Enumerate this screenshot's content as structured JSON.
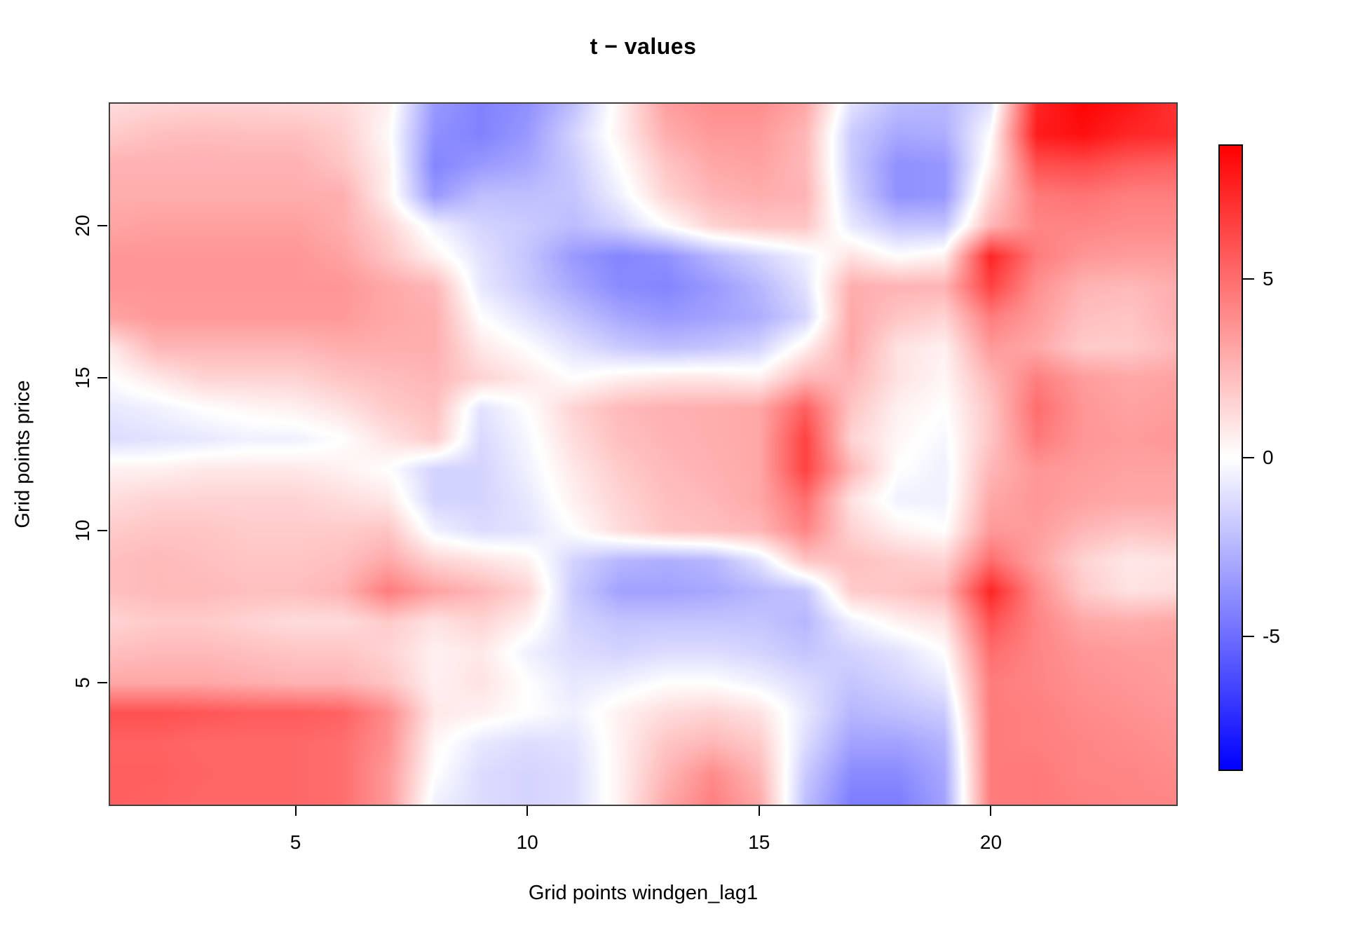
{
  "title": "t − values",
  "x_axis": {
    "label": "Grid points windgen_lag1",
    "tick_labels": [
      "5",
      "10",
      "15",
      "20"
    ],
    "tick_values": [
      5,
      10,
      15,
      20
    ]
  },
  "y_axis": {
    "label": "Grid points price",
    "tick_labels": [
      "5",
      "10",
      "15",
      "20"
    ],
    "tick_values": [
      5,
      10,
      15,
      20
    ]
  },
  "colorbar": {
    "tick_labels": [
      "5",
      "0",
      "-5"
    ],
    "tick_values": [
      5,
      0,
      -5
    ],
    "top_value": 8.75,
    "bottom_value": -8.75,
    "color_positive": "#ff0000",
    "color_zero": "#ffffff",
    "color_negative": "#0000ff"
  },
  "chart_data": {
    "type": "heatmap",
    "title": "t − values",
    "xlabel": "Grid points windgen_lag1",
    "ylabel": "Grid points price",
    "x_range": [
      1,
      24
    ],
    "y_range": [
      1,
      24
    ],
    "x": [
      1,
      2,
      3,
      4,
      5,
      6,
      7,
      8,
      9,
      10,
      11,
      12,
      13,
      14,
      15,
      16,
      17,
      18,
      19,
      20,
      21,
      22,
      23,
      24
    ],
    "y": [
      1,
      2,
      3,
      4,
      5,
      6,
      7,
      8,
      9,
      10,
      11,
      12,
      13,
      14,
      15,
      16,
      17,
      18,
      19,
      20,
      21,
      22,
      23,
      24
    ],
    "zlim": [
      -8.75,
      8.75
    ],
    "palette": "blue-white-red diverging, white at 0",
    "legend": "vertical colorbar at right, ticks 5 / 0 / -5",
    "grid": false,
    "z_rows_order": "top row first (y=24) down to bottom row (y=1)",
    "z": [
      [
        1.2,
        1.4,
        1.5,
        1.5,
        1.4,
        1.3,
        0.5,
        -3.5,
        -4.3,
        -3.8,
        -2.2,
        0.5,
        3.3,
        3.9,
        3.9,
        3.0,
        -1.0,
        -2.3,
        -2.5,
        -1.0,
        7.5,
        8.6,
        8.0,
        7.0
      ],
      [
        1.8,
        2.2,
        2.3,
        2.2,
        2.2,
        1.7,
        0.2,
        -3.8,
        -4.3,
        -3.5,
        -1.5,
        0.5,
        2.8,
        3.5,
        3.5,
        2.5,
        -1.8,
        -3.0,
        -2.8,
        0.0,
        7.8,
        8.2,
        7.4,
        7.2
      ],
      [
        2.7,
        2.7,
        2.7,
        2.7,
        2.7,
        2.0,
        0.5,
        -4.2,
        -3.5,
        -3.0,
        -1.8,
        0.0,
        2.0,
        3.0,
        3.2,
        2.4,
        -1.8,
        -3.8,
        -3.6,
        0.5,
        6.0,
        6.2,
        5.6,
        5.4
      ],
      [
        2.8,
        2.8,
        2.8,
        2.8,
        2.8,
        2.8,
        0.5,
        -3.5,
        -2.2,
        -2.2,
        -2.0,
        -0.5,
        1.5,
        2.5,
        2.8,
        2.6,
        -1.5,
        -3.8,
        -3.6,
        1.5,
        4.6,
        4.8,
        4.4,
        4.4
      ],
      [
        3.1,
        3.3,
        3.3,
        3.3,
        3.3,
        2.8,
        1.5,
        -0.5,
        -1.5,
        -1.8,
        -2.3,
        -1.5,
        0.0,
        1.5,
        2.0,
        2.0,
        -0.8,
        -2.0,
        -2.0,
        2.5,
        4.2,
        4.2,
        4.0,
        4.0
      ],
      [
        3.6,
        3.6,
        3.6,
        3.6,
        3.6,
        3.2,
        2.0,
        0.5,
        -1.0,
        -2.0,
        -3.5,
        -4.2,
        -3.8,
        -2.5,
        -1.5,
        -0.5,
        1.0,
        0.0,
        0.5,
        7.5,
        4.5,
        3.6,
        3.4,
        3.4
      ],
      [
        3.6,
        3.6,
        3.6,
        3.6,
        3.6,
        3.6,
        3.0,
        2.5,
        -0.8,
        -1.8,
        -3.0,
        -4.0,
        -4.2,
        -3.5,
        -2.5,
        -1.0,
        2.8,
        2.6,
        2.6,
        6.5,
        3.8,
        2.6,
        2.4,
        2.8
      ],
      [
        3.2,
        3.5,
        3.5,
        3.5,
        3.5,
        3.5,
        3.0,
        2.8,
        0.0,
        -1.0,
        -2.0,
        -3.0,
        -3.5,
        -3.2,
        -2.8,
        -1.5,
        3.0,
        2.0,
        1.5,
        4.5,
        3.4,
        2.2,
        2.0,
        2.8
      ],
      [
        0.8,
        2.5,
        2.5,
        2.5,
        2.5,
        2.8,
        2.8,
        2.8,
        0.8,
        0.0,
        -1.0,
        -1.8,
        -2.2,
        -2.0,
        -1.5,
        0.5,
        3.0,
        1.0,
        0.5,
        3.5,
        3.0,
        1.8,
        1.8,
        2.4
      ],
      [
        0.0,
        0.8,
        1.5,
        1.5,
        1.5,
        2.0,
        2.3,
        2.5,
        1.5,
        0.8,
        0.0,
        0.5,
        0.8,
        0.8,
        0.5,
        2.5,
        2.5,
        1.0,
        0.3,
        2.5,
        4.4,
        3.4,
        3.0,
        3.2
      ],
      [
        -0.8,
        -0.5,
        0.0,
        0.3,
        0.5,
        1.0,
        1.8,
        2.2,
        -1.0,
        0.0,
        1.5,
        2.4,
        2.7,
        2.8,
        3.0,
        5.5,
        2.0,
        0.5,
        0.0,
        2.0,
        5.0,
        3.6,
        3.2,
        3.4
      ],
      [
        -1.2,
        -1.0,
        -0.8,
        -0.5,
        -0.5,
        0.0,
        1.0,
        1.8,
        -1.3,
        -0.3,
        1.2,
        2.2,
        2.6,
        2.8,
        3.0,
        6.5,
        1.5,
        0.3,
        -0.3,
        2.0,
        4.6,
        3.6,
        3.4,
        3.6
      ],
      [
        0.5,
        0.5,
        0.8,
        0.8,
        0.8,
        0.5,
        0.0,
        -1.5,
        -1.5,
        -0.5,
        0.8,
        1.8,
        2.4,
        2.7,
        3.0,
        6.5,
        2.5,
        0.0,
        -0.5,
        2.5,
        3.6,
        3.4,
        3.2,
        3.2
      ],
      [
        1.2,
        1.5,
        1.5,
        1.5,
        1.5,
        1.2,
        0.8,
        -1.5,
        -1.5,
        -0.8,
        0.5,
        1.5,
        2.2,
        2.5,
        3.0,
        5.0,
        1.0,
        -0.5,
        -0.5,
        3.0,
        3.6,
        3.2,
        3.0,
        3.0
      ],
      [
        1.8,
        2.0,
        2.0,
        1.8,
        1.8,
        1.8,
        2.0,
        -0.5,
        -1.2,
        -1.0,
        0.0,
        1.2,
        2.0,
        2.2,
        2.5,
        4.2,
        1.5,
        0.5,
        0.0,
        3.5,
        3.4,
        2.5,
        2.0,
        2.2
      ],
      [
        2.2,
        2.4,
        2.2,
        2.0,
        2.0,
        2.2,
        3.0,
        1.5,
        1.0,
        0.5,
        -1.5,
        -2.5,
        -2.8,
        -2.5,
        -1.0,
        2.0,
        2.2,
        1.8,
        1.5,
        5.0,
        3.2,
        1.5,
        0.8,
        1.0
      ],
      [
        2.2,
        2.4,
        2.4,
        2.2,
        2.2,
        2.6,
        4.5,
        3.2,
        2.5,
        1.5,
        -1.8,
        -3.2,
        -3.2,
        -3.0,
        -2.5,
        -2.0,
        1.8,
        2.0,
        2.5,
        7.5,
        4.0,
        1.8,
        1.0,
        1.2
      ],
      [
        1.5,
        1.8,
        1.8,
        1.5,
        1.2,
        1.2,
        1.8,
        1.0,
        1.5,
        0.5,
        -1.5,
        -2.0,
        -2.0,
        -2.0,
        -2.0,
        -2.5,
        -0.5,
        0.5,
        1.0,
        6.0,
        4.2,
        3.0,
        2.8,
        3.0
      ],
      [
        2.2,
        2.4,
        2.4,
        2.2,
        2.0,
        2.0,
        1.5,
        0.5,
        0.8,
        -0.5,
        -1.2,
        -1.5,
        -1.2,
        -1.2,
        -1.5,
        -2.0,
        -1.5,
        -1.0,
        0.0,
        5.0,
        4.2,
        3.6,
        3.4,
        3.4
      ],
      [
        3.0,
        3.0,
        3.0,
        2.8,
        2.6,
        2.6,
        2.0,
        0.5,
        1.0,
        0.0,
        -0.8,
        -0.5,
        0.0,
        0.0,
        -0.5,
        -1.2,
        -2.0,
        -1.5,
        -0.8,
        4.5,
        4.2,
        3.8,
        3.6,
        3.4
      ],
      [
        6.0,
        6.0,
        5.8,
        5.6,
        5.6,
        5.4,
        4.0,
        0.8,
        0.5,
        0.0,
        -0.5,
        0.5,
        1.2,
        1.5,
        1.0,
        -0.8,
        -2.5,
        -2.2,
        -1.8,
        4.5,
        4.4,
        4.0,
        3.8,
        3.6
      ],
      [
        5.4,
        5.4,
        5.2,
        5.2,
        5.2,
        5.0,
        3.8,
        0.3,
        -0.8,
        -1.2,
        -1.0,
        0.5,
        2.0,
        2.5,
        1.8,
        -1.2,
        -3.2,
        -3.2,
        -2.6,
        4.5,
        4.4,
        4.2,
        4.0,
        3.8
      ],
      [
        5.5,
        5.5,
        5.3,
        5.2,
        5.2,
        5.0,
        3.5,
        0.0,
        -1.2,
        -1.5,
        -1.2,
        0.5,
        2.5,
        4.0,
        2.5,
        -1.8,
        -4.0,
        -4.0,
        -3.0,
        4.5,
        4.6,
        4.2,
        4.2,
        4.0
      ],
      [
        5.5,
        5.4,
        5.2,
        5.2,
        5.2,
        5.0,
        3.5,
        -0.5,
        -1.2,
        -1.5,
        -1.2,
        0.5,
        3.0,
        4.4,
        3.0,
        -2.2,
        -4.5,
        -4.5,
        -3.2,
        4.5,
        4.6,
        4.4,
        4.2,
        4.2
      ]
    ]
  }
}
